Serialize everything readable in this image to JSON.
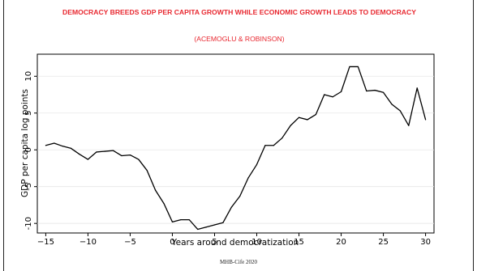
{
  "slide": {
    "title": "DEMOCRACY BREEDS GDP PER CAPITA GROWTH WHILE ECONOMIC GROWTH LEADS TO DEMOCRACY",
    "subtitle": "(ACEMOGLU & ROBINSON)",
    "footer": "MHB-Cife 2020",
    "title_color": "#e8272f"
  },
  "chart_data": {
    "type": "line",
    "title": "",
    "xlabel": "Years around democratization",
    "ylabel": "GDP per capita log points",
    "xlim": [
      -16,
      31
    ],
    "ylim": [
      -11.3,
      13
    ],
    "xticks": [
      -15,
      -10,
      -5,
      0,
      5,
      10,
      15,
      20,
      25,
      30
    ],
    "yticks": [
      -10,
      -5,
      0,
      5,
      10
    ],
    "grid": true,
    "line_color": "#000000",
    "x": [
      -15,
      -14,
      -13,
      -12,
      -11,
      -10,
      -9,
      -8,
      -7,
      -6,
      -5,
      -4,
      -3,
      -2,
      -1,
      0,
      1,
      2,
      3,
      4,
      5,
      6,
      7,
      8,
      9,
      10,
      11,
      12,
      13,
      14,
      15,
      16,
      17,
      18,
      19,
      20,
      21,
      22,
      23,
      24,
      25,
      26,
      27,
      28,
      29,
      30
    ],
    "y": [
      0.6,
      0.9,
      0.5,
      0.2,
      -0.6,
      -1.3,
      -0.3,
      -0.2,
      -0.1,
      -0.8,
      -0.7,
      -1.3,
      -2.8,
      -5.5,
      -7.3,
      -9.8,
      -9.5,
      -9.5,
      -10.8,
      -10.5,
      -10.2,
      -9.9,
      -7.8,
      -6.3,
      -3.8,
      -2.0,
      0.6,
      0.6,
      1.6,
      3.3,
      4.4,
      4.1,
      4.8,
      7.5,
      7.2,
      7.9,
      11.3,
      11.3,
      8.0,
      8.1,
      7.8,
      6.2,
      5.3,
      3.3,
      8.4,
      4.1
    ]
  }
}
